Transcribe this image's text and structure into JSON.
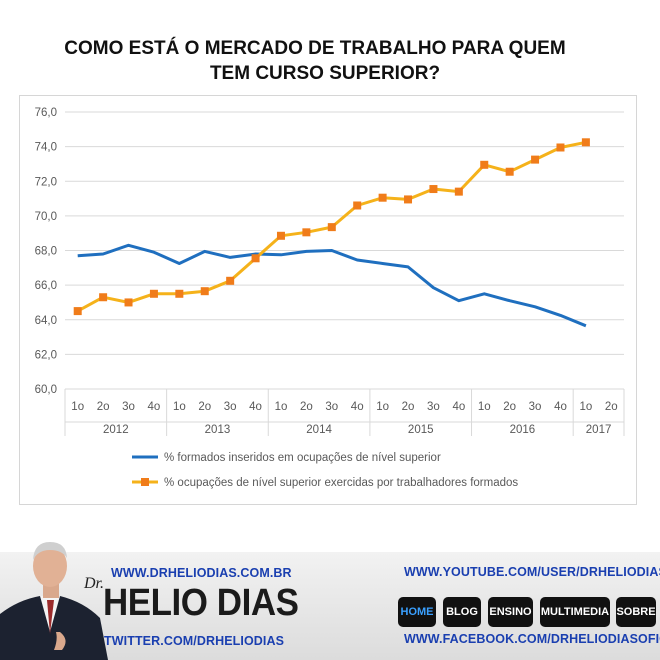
{
  "title": {
    "line1": "COMO ESTÁ O MERCADO DE TRABALHO PARA QUEM",
    "line2": "TEM CURSO SUPERIOR?"
  },
  "chart_data": {
    "type": "line",
    "ylim": [
      60,
      76
    ],
    "y_ticks": [
      "60,0",
      "62,0",
      "64,0",
      "66,0",
      "68,0",
      "70,0",
      "72,0",
      "74,0",
      "76,0"
    ],
    "quarters": [
      "1o",
      "2o",
      "3o",
      "4o",
      "1o",
      "2o",
      "3o",
      "4o",
      "1o",
      "2o",
      "3o",
      "4o",
      "1o",
      "2o",
      "3o",
      "4o",
      "1o",
      "2o",
      "3o",
      "4o",
      "1o",
      "2o"
    ],
    "years": [
      "2012",
      "2013",
      "2014",
      "2015",
      "2016",
      "2017"
    ],
    "grid": true,
    "legend_position": "bottom",
    "series": [
      {
        "name": "% formados inseridos em ocupações de nível superior",
        "color": "#1f6fbf",
        "marker": "none",
        "values": [
          67.7,
          67.8,
          68.3,
          67.9,
          67.25,
          67.95,
          67.6,
          67.8,
          67.75,
          67.95,
          68.0,
          67.45,
          67.25,
          67.05,
          65.85,
          65.1,
          65.5,
          65.1,
          64.75,
          64.25,
          63.65,
          null
        ]
      },
      {
        "name": "% ocupações de nível superior exercidas por trabalhadores formados",
        "color": "#f5b21a",
        "marker": "square",
        "marker_color": "#f07c1a",
        "values": [
          64.5,
          65.3,
          65.0,
          65.5,
          65.5,
          65.65,
          66.25,
          67.55,
          68.85,
          69.05,
          69.35,
          70.6,
          71.05,
          70.95,
          71.55,
          71.4,
          72.95,
          72.55,
          73.25,
          73.95,
          74.25,
          null
        ]
      }
    ]
  },
  "footer": {
    "website": "WWW.DRHELIODIAS.COM.BR",
    "twitter": "TWITTER.COM/DRHELIODIAS",
    "youtube": "WWW.YOUTUBE.COM/USER/DRHELIODIAS",
    "facebook": "WWW.FACEBOOK.COM/DRHELIODIASOFICIAL",
    "brand_prefix": "Dr.",
    "brand_name": "HELIO DIAS",
    "nav": [
      "HOME",
      "BLOG",
      "ENSINO",
      "MULTIMEDIA",
      "SOBRE"
    ]
  }
}
